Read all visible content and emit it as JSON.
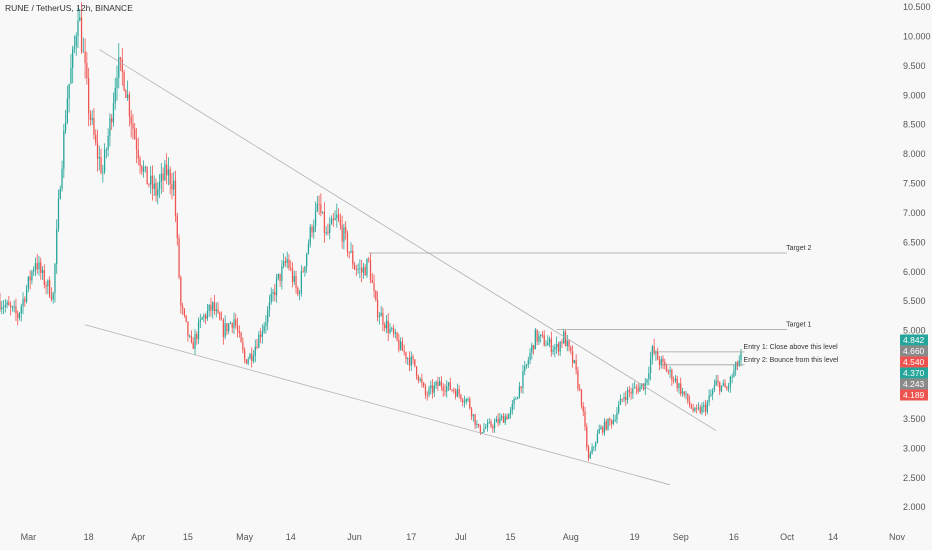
{
  "header": {
    "symbol_title": "RUNE / TetherUS, 12h, BINANCE"
  },
  "colors": {
    "background": "#f8f8f8",
    "up_candle": "#26a69a",
    "down_candle": "#ef5350",
    "trendline": "#b0b0b0",
    "level_line": "#a0a0a0",
    "axis_text": "#555555"
  },
  "chart_data": {
    "type": "candlestick",
    "title": "RUNE / TetherUS, 12h, BINANCE",
    "x_axis": {
      "type": "time",
      "range": [
        "2024-02-22",
        "2024-11-01"
      ],
      "ticks": [
        {
          "date": "2024-03-01",
          "label": "Mar"
        },
        {
          "date": "2024-03-18",
          "label": "18"
        },
        {
          "date": "2024-04-01",
          "label": "Apr"
        },
        {
          "date": "2024-04-15",
          "label": "15"
        },
        {
          "date": "2024-05-01",
          "label": "May"
        },
        {
          "date": "2024-05-14",
          "label": "14"
        },
        {
          "date": "2024-06-01",
          "label": "Jun"
        },
        {
          "date": "2024-06-17",
          "label": "17"
        },
        {
          "date": "2024-07-01",
          "label": "Jul"
        },
        {
          "date": "2024-07-15",
          "label": "15"
        },
        {
          "date": "2024-08-01",
          "label": "Aug"
        },
        {
          "date": "2024-08-19",
          "label": "19"
        },
        {
          "date": "2024-09-01",
          "label": "Sep"
        },
        {
          "date": "2024-09-16",
          "label": "16"
        },
        {
          "date": "2024-10-01",
          "label": "Oct"
        },
        {
          "date": "2024-10-14",
          "label": "14"
        },
        {
          "date": "2024-11-01",
          "label": "Nov"
        }
      ]
    },
    "y_axis": {
      "range": [
        1.85,
        10.62
      ],
      "ticks": [
        "10.500",
        "10.000",
        "9.500",
        "9.000",
        "8.500",
        "8.000",
        "7.500",
        "7.000",
        "6.500",
        "6.000",
        "5.500",
        "5.000",
        "4.500",
        "4.000",
        "3.500",
        "3.000",
        "2.500",
        "2.000"
      ]
    },
    "price_path": [
      [
        "2024-02-22",
        5.5
      ],
      [
        "2024-02-27",
        5.25
      ],
      [
        "2024-03-01",
        5.8
      ],
      [
        "2024-03-03",
        6.2
      ],
      [
        "2024-03-05",
        5.9
      ],
      [
        "2024-03-08",
        5.6
      ],
      [
        "2024-03-10",
        7.6
      ],
      [
        "2024-03-12",
        9.0
      ],
      [
        "2024-03-14",
        9.8
      ],
      [
        "2024-03-15",
        10.5
      ],
      [
        "2024-03-18",
        8.8
      ],
      [
        "2024-03-20",
        8.1
      ],
      [
        "2024-03-22",
        7.7
      ],
      [
        "2024-03-24",
        8.5
      ],
      [
        "2024-03-26",
        9.5
      ],
      [
        "2024-03-28",
        9.3
      ],
      [
        "2024-03-31",
        8.3
      ],
      [
        "2024-04-03",
        7.6
      ],
      [
        "2024-04-06",
        7.35
      ],
      [
        "2024-04-09",
        7.7
      ],
      [
        "2024-04-11",
        7.5
      ],
      [
        "2024-04-13",
        5.4
      ],
      [
        "2024-04-16",
        4.7
      ],
      [
        "2024-04-19",
        5.2
      ],
      [
        "2024-04-22",
        5.4
      ],
      [
        "2024-04-25",
        5.0
      ],
      [
        "2024-04-28",
        5.2
      ],
      [
        "2024-05-01",
        4.5
      ],
      [
        "2024-05-03",
        4.6
      ],
      [
        "2024-05-07",
        5.2
      ],
      [
        "2024-05-10",
        5.8
      ],
      [
        "2024-05-13",
        6.2
      ],
      [
        "2024-05-16",
        5.6
      ],
      [
        "2024-05-20",
        6.8
      ],
      [
        "2024-05-22",
        7.1
      ],
      [
        "2024-05-24",
        6.6
      ],
      [
        "2024-05-27",
        6.9
      ],
      [
        "2024-05-29",
        6.6
      ],
      [
        "2024-06-01",
        6.1
      ],
      [
        "2024-06-03",
        6.0
      ],
      [
        "2024-06-05",
        6.15
      ],
      [
        "2024-06-07",
        5.4
      ],
      [
        "2024-06-10",
        5.1
      ],
      [
        "2024-06-14",
        4.7
      ],
      [
        "2024-06-18",
        4.4
      ],
      [
        "2024-06-21",
        3.9
      ],
      [
        "2024-06-25",
        4.1
      ],
      [
        "2024-06-29",
        4.0
      ],
      [
        "2024-07-03",
        3.8
      ],
      [
        "2024-07-06",
        3.3
      ],
      [
        "2024-07-10",
        3.4
      ],
      [
        "2024-07-15",
        3.6
      ],
      [
        "2024-07-19",
        4.3
      ],
      [
        "2024-07-22",
        4.9
      ],
      [
        "2024-07-25",
        4.8
      ],
      [
        "2024-07-28",
        4.7
      ],
      [
        "2024-07-30",
        4.9
      ],
      [
        "2024-08-02",
        4.4
      ],
      [
        "2024-08-04",
        3.8
      ],
      [
        "2024-08-06",
        2.8
      ],
      [
        "2024-08-09",
        3.3
      ],
      [
        "2024-08-13",
        3.5
      ],
      [
        "2024-08-16",
        3.9
      ],
      [
        "2024-08-19",
        4.0
      ],
      [
        "2024-08-22",
        4.1
      ],
      [
        "2024-08-24",
        4.65
      ],
      [
        "2024-08-27",
        4.4
      ],
      [
        "2024-08-30",
        4.2
      ],
      [
        "2024-09-02",
        3.9
      ],
      [
        "2024-09-05",
        3.6
      ],
      [
        "2024-09-08",
        3.7
      ],
      [
        "2024-09-11",
        4.1
      ],
      [
        "2024-09-14",
        4.0
      ],
      [
        "2024-09-16",
        4.3
      ],
      [
        "2024-09-18",
        4.55
      ]
    ],
    "trendlines": [
      {
        "start": [
          "2024-03-21",
          9.78
        ],
        "end": [
          "2024-09-11",
          3.3
        ]
      },
      {
        "start": [
          "2024-03-17",
          5.1
        ],
        "end": [
          "2024-08-29",
          2.38
        ]
      }
    ],
    "levels": [
      {
        "label": "Target 2",
        "value": 6.32,
        "from": "2024-06-05",
        "to": "2024-10-01"
      },
      {
        "label": "Target 1",
        "value": 5.02,
        "from": "2024-07-28",
        "to": "2024-10-01"
      },
      {
        "label": "Entry 1: Close above this level",
        "value": 4.64,
        "from": "2024-08-24",
        "to": "2024-09-19"
      },
      {
        "label": "Entry 2: Bounce from this level",
        "value": 4.42,
        "from": "2024-08-26",
        "to": "2024-09-19"
      }
    ],
    "price_badges": [
      {
        "text": "4.842",
        "value": 4.842,
        "color": "#26a69a"
      },
      {
        "text": "4.660",
        "value": 4.66,
        "color": "#8a8a8a"
      },
      {
        "text": "4.540",
        "value": 4.54,
        "color": "#ef5350"
      },
      {
        "text": "4.370",
        "value": 4.37,
        "color": "#26a69a"
      },
      {
        "text": "4.243",
        "value": 4.243,
        "color": "#8a8a8a"
      },
      {
        "text": "4.189",
        "value": 4.189,
        "color": "#ef5350"
      }
    ]
  }
}
